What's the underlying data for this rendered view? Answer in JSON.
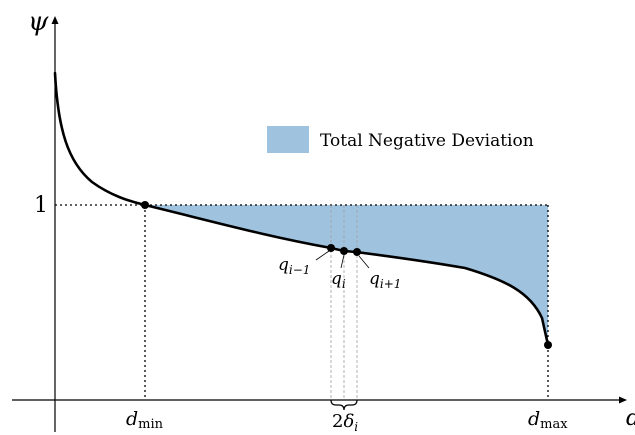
{
  "axes": {
    "y_label": "ψ",
    "x_label": "d"
  },
  "y_tick": {
    "label": "1"
  },
  "x_ticks": {
    "d_min": {
      "base": "d",
      "sub": "min"
    },
    "d_max": {
      "base": "d",
      "sub": "max"
    }
  },
  "legend": {
    "label": "Total Negative Deviation",
    "color": "#9fc3df"
  },
  "points": {
    "q_prev": {
      "base": "q",
      "sub": "i−1"
    },
    "q_i": {
      "base": "q",
      "sub": "i"
    },
    "q_next": {
      "base": "q",
      "sub": "i+1"
    }
  },
  "brace_label": {
    "prefix": "2",
    "base": "δ",
    "sub": "i"
  },
  "colors": {
    "curve": "#000000",
    "fill": "#9fc3df",
    "dotted": "#000000",
    "guide": "#999999"
  }
}
